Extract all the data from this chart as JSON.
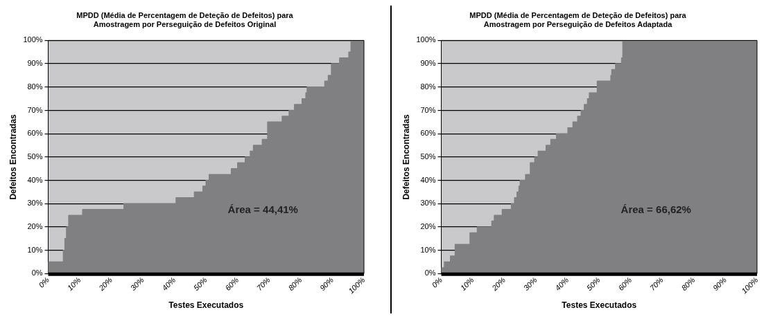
{
  "chart_data": [
    {
      "type": "area",
      "title": "MPDD (Média de Percentagem de Deteção de Defeitos) para\nAmostragem por Perseguição de Defeitos Original",
      "xlabel": "Testes Executados",
      "ylabel": "Defeitos Encontradas",
      "annotations": [
        "Área = 44,41%"
      ],
      "series": [
        {
          "color": "#807f82",
          "x": [
            0,
            4.8,
            5.3,
            5.8,
            6.5,
            10.9,
            24,
            40.5,
            46.3,
            49,
            50,
            51,
            58,
            60,
            62.4,
            64,
            65,
            67.8,
            69.5,
            74.1,
            76.3,
            78,
            80.4,
            81.6,
            82,
            87.6,
            88.7,
            89.7,
            92.3,
            95.2,
            95.9,
            96.5,
            100
          ],
          "values": [
            0,
            5,
            10,
            15,
            20,
            25,
            27.5,
            30,
            32.5,
            35,
            37.5,
            40,
            42.5,
            45,
            47.5,
            50,
            52.5,
            55,
            57.5,
            65,
            67.5,
            70,
            72.5,
            75,
            77.5,
            80,
            82.5,
            85,
            90,
            92.5,
            95,
            100,
            100
          ]
        }
      ],
      "xlim": [
        0,
        100
      ],
      "ylim": [
        0,
        100
      ],
      "xticks": [
        {
          "value": 0,
          "label": "0%"
        },
        {
          "value": 10,
          "label": "10%"
        },
        {
          "value": 20,
          "label": "20%"
        },
        {
          "value": 30,
          "label": "30%"
        },
        {
          "value": 40,
          "label": "40%"
        },
        {
          "value": 50,
          "label": "50%"
        },
        {
          "value": 60,
          "label": "60%"
        },
        {
          "value": 70,
          "label": "70%"
        },
        {
          "value": 80,
          "label": "80%"
        },
        {
          "value": 90,
          "label": "90%"
        },
        {
          "value": 100,
          "label": "100%"
        }
      ],
      "yticks": [
        {
          "value": 0,
          "label": "0%"
        },
        {
          "value": 10,
          "label": "10%"
        },
        {
          "value": 20,
          "label": "20%"
        },
        {
          "value": 30,
          "label": "30%"
        },
        {
          "value": 40,
          "label": "40%"
        },
        {
          "value": 50,
          "label": "50%"
        },
        {
          "value": 60,
          "label": "60%"
        },
        {
          "value": 70,
          "label": "70%"
        },
        {
          "value": 80,
          "label": "80%"
        },
        {
          "value": 90,
          "label": "90%"
        },
        {
          "value": 100,
          "label": "100%"
        }
      ],
      "grid": "y",
      "legend": false
    },
    {
      "type": "area",
      "title": "MPDD (Média de Percentagem de Deteção de Defeitos) para\nAmostragem por Perseguição de Defeitos Adaptada",
      "xlabel": "Testes Executados",
      "ylabel": "Defeitos Encontradas",
      "annotations": [
        "Área = 66,62%"
      ],
      "series": [
        {
          "color": "#807f82",
          "x": [
            0,
            1,
            2.9,
            4.4,
            9.1,
            11.4,
            16,
            16.8,
            19.3,
            22.2,
            23.2,
            24,
            24.6,
            25,
            26.7,
            28.2,
            29.6,
            30.7,
            33.2,
            34.7,
            36.5,
            40.1,
            41.7,
            43.2,
            44.3,
            45.3,
            46.3,
            46.9,
            49.4,
            53.7,
            54,
            55.2,
            57.1,
            57.5,
            62.2,
            100
          ],
          "values": [
            0,
            2.5,
            5,
            7.5,
            12.5,
            17.5,
            20,
            22.5,
            25,
            27.5,
            30,
            32.5,
            35,
            37.5,
            40,
            42.5,
            47.5,
            50,
            52.5,
            55,
            57.5,
            60,
            62.5,
            65,
            67.5,
            70,
            72.5,
            75,
            77.5,
            82.5,
            85,
            87.5,
            90,
            92.5,
            100,
            100
          ]
        }
      ],
      "xlim": [
        0,
        100
      ],
      "ylim": [
        0,
        100
      ],
      "xticks": [
        {
          "value": 0,
          "label": "0%"
        },
        {
          "value": 10,
          "label": "10%"
        },
        {
          "value": 20,
          "label": "20%"
        },
        {
          "value": 30,
          "label": "30%"
        },
        {
          "value": 40,
          "label": "40%"
        },
        {
          "value": 50,
          "label": "50%"
        },
        {
          "value": 60,
          "label": "60%"
        },
        {
          "value": 70,
          "label": "70%"
        },
        {
          "value": 80,
          "label": "80%"
        },
        {
          "value": 90,
          "label": "90%"
        },
        {
          "value": 100,
          "label": "100%"
        }
      ],
      "yticks": [
        {
          "value": 0,
          "label": "0%"
        },
        {
          "value": 10,
          "label": "10%"
        },
        {
          "value": 20,
          "label": "20%"
        },
        {
          "value": 30,
          "label": "30%"
        },
        {
          "value": 40,
          "label": "40%"
        },
        {
          "value": 50,
          "label": "50%"
        },
        {
          "value": 60,
          "label": "60%"
        },
        {
          "value": 70,
          "label": "70%"
        },
        {
          "value": 80,
          "label": "80%"
        },
        {
          "value": 90,
          "label": "90%"
        },
        {
          "value": 100,
          "label": "100%"
        }
      ],
      "grid": "y",
      "legend": false
    }
  ]
}
